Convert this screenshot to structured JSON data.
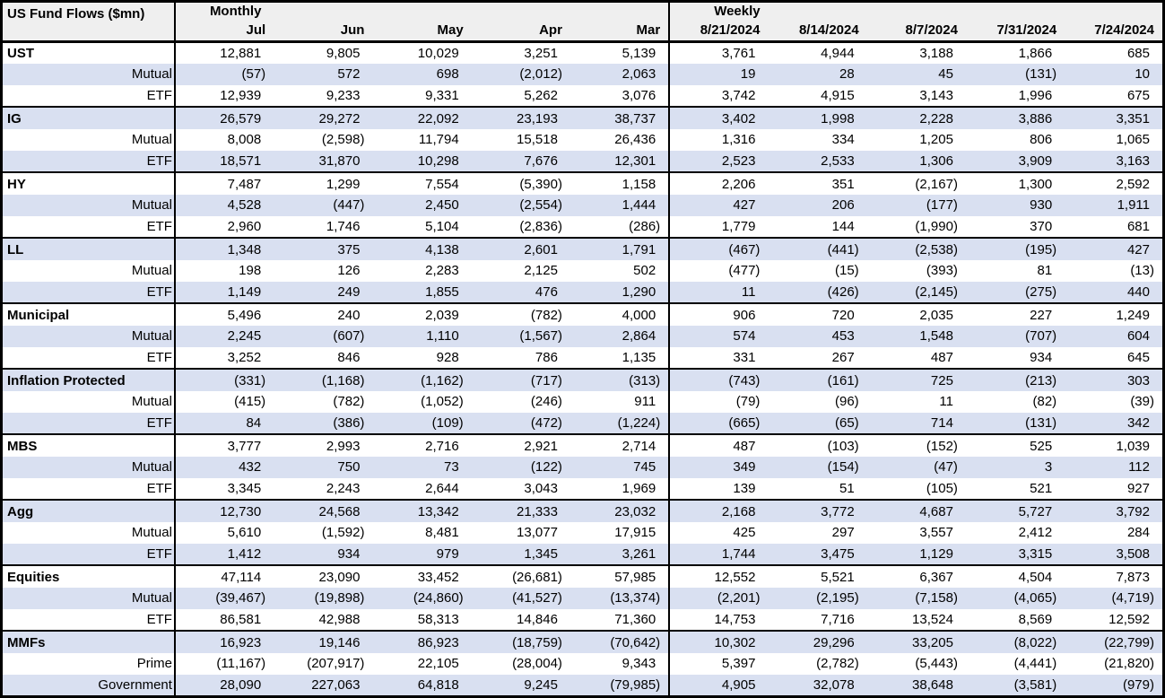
{
  "table": {
    "title": "US Fund Flows ($mn)",
    "sections": [
      {
        "label": "Monthly",
        "columns": [
          "Jul",
          "Jun",
          "May",
          "Apr",
          "Mar"
        ]
      },
      {
        "label": "Weekly",
        "columns": [
          "8/21/2024",
          "8/14/2024",
          "8/7/2024",
          "7/31/2024",
          "7/24/2024"
        ]
      }
    ],
    "groups": [
      {
        "name": "UST",
        "rows": [
          {
            "label": "UST",
            "values": [
              "12,881",
              "9,805",
              "10,029",
              "3,251",
              "5,139",
              "3,761",
              "4,944",
              "3,188",
              "1,866",
              "685"
            ]
          },
          {
            "label": "Mutual",
            "values": [
              "(57)",
              "572",
              "698",
              "(2,012)",
              "2,063",
              "19",
              "28",
              "45",
              "(131)",
              "10"
            ]
          },
          {
            "label": "ETF",
            "values": [
              "12,939",
              "9,233",
              "9,331",
              "5,262",
              "3,076",
              "3,742",
              "4,915",
              "3,143",
              "1,996",
              "675"
            ]
          }
        ]
      },
      {
        "name": "IG",
        "rows": [
          {
            "label": "IG",
            "values": [
              "26,579",
              "29,272",
              "22,092",
              "23,193",
              "38,737",
              "3,402",
              "1,998",
              "2,228",
              "3,886",
              "3,351"
            ]
          },
          {
            "label": "Mutual",
            "values": [
              "8,008",
              "(2,598)",
              "11,794",
              "15,518",
              "26,436",
              "1,316",
              "334",
              "1,205",
              "806",
              "1,065"
            ]
          },
          {
            "label": "ETF",
            "values": [
              "18,571",
              "31,870",
              "10,298",
              "7,676",
              "12,301",
              "2,523",
              "2,533",
              "1,306",
              "3,909",
              "3,163"
            ]
          }
        ]
      },
      {
        "name": "HY",
        "rows": [
          {
            "label": "HY",
            "values": [
              "7,487",
              "1,299",
              "7,554",
              "(5,390)",
              "1,158",
              "2,206",
              "351",
              "(2,167)",
              "1,300",
              "2,592"
            ]
          },
          {
            "label": "Mutual",
            "values": [
              "4,528",
              "(447)",
              "2,450",
              "(2,554)",
              "1,444",
              "427",
              "206",
              "(177)",
              "930",
              "1,911"
            ]
          },
          {
            "label": "ETF",
            "values": [
              "2,960",
              "1,746",
              "5,104",
              "(2,836)",
              "(286)",
              "1,779",
              "144",
              "(1,990)",
              "370",
              "681"
            ]
          }
        ]
      },
      {
        "name": "LL",
        "rows": [
          {
            "label": "LL",
            "values": [
              "1,348",
              "375",
              "4,138",
              "2,601",
              "1,791",
              "(467)",
              "(441)",
              "(2,538)",
              "(195)",
              "427"
            ]
          },
          {
            "label": "Mutual",
            "values": [
              "198",
              "126",
              "2,283",
              "2,125",
              "502",
              "(477)",
              "(15)",
              "(393)",
              "81",
              "(13)"
            ]
          },
          {
            "label": "ETF",
            "values": [
              "1,149",
              "249",
              "1,855",
              "476",
              "1,290",
              "11",
              "(426)",
              "(2,145)",
              "(275)",
              "440"
            ]
          }
        ]
      },
      {
        "name": "Municipal",
        "rows": [
          {
            "label": "Municipal",
            "values": [
              "5,496",
              "240",
              "2,039",
              "(782)",
              "4,000",
              "906",
              "720",
              "2,035",
              "227",
              "1,249"
            ]
          },
          {
            "label": "Mutual",
            "values": [
              "2,245",
              "(607)",
              "1,110",
              "(1,567)",
              "2,864",
              "574",
              "453",
              "1,548",
              "(707)",
              "604"
            ]
          },
          {
            "label": "ETF",
            "values": [
              "3,252",
              "846",
              "928",
              "786",
              "1,135",
              "331",
              "267",
              "487",
              "934",
              "645"
            ]
          }
        ]
      },
      {
        "name": "Inflation Protected",
        "rows": [
          {
            "label": "Inflation Protected",
            "values": [
              "(331)",
              "(1,168)",
              "(1,162)",
              "(717)",
              "(313)",
              "(743)",
              "(161)",
              "725",
              "(213)",
              "303"
            ]
          },
          {
            "label": "Mutual",
            "values": [
              "(415)",
              "(782)",
              "(1,052)",
              "(246)",
              "911",
              "(79)",
              "(96)",
              "11",
              "(82)",
              "(39)"
            ]
          },
          {
            "label": "ETF",
            "values": [
              "84",
              "(386)",
              "(109)",
              "(472)",
              "(1,224)",
              "(665)",
              "(65)",
              "714",
              "(131)",
              "342"
            ]
          }
        ]
      },
      {
        "name": "MBS",
        "rows": [
          {
            "label": "MBS",
            "values": [
              "3,777",
              "2,993",
              "2,716",
              "2,921",
              "2,714",
              "487",
              "(103)",
              "(152)",
              "525",
              "1,039"
            ]
          },
          {
            "label": "Mutual",
            "values": [
              "432",
              "750",
              "73",
              "(122)",
              "745",
              "349",
              "(154)",
              "(47)",
              "3",
              "112"
            ]
          },
          {
            "label": "ETF",
            "values": [
              "3,345",
              "2,243",
              "2,644",
              "3,043",
              "1,969",
              "139",
              "51",
              "(105)",
              "521",
              "927"
            ]
          }
        ]
      },
      {
        "name": "Agg",
        "rows": [
          {
            "label": "Agg",
            "values": [
              "12,730",
              "24,568",
              "13,342",
              "21,333",
              "23,032",
              "2,168",
              "3,772",
              "4,687",
              "5,727",
              "3,792"
            ]
          },
          {
            "label": "Mutual",
            "values": [
              "5,610",
              "(1,592)",
              "8,481",
              "13,077",
              "17,915",
              "425",
              "297",
              "3,557",
              "2,412",
              "284"
            ]
          },
          {
            "label": "ETF",
            "values": [
              "1,412",
              "934",
              "979",
              "1,345",
              "3,261",
              "1,744",
              "3,475",
              "1,129",
              "3,315",
              "3,508"
            ]
          }
        ]
      },
      {
        "name": "Equities",
        "rows": [
          {
            "label": "Equities",
            "values": [
              "47,114",
              "23,090",
              "33,452",
              "(26,681)",
              "57,985",
              "12,552",
              "5,521",
              "6,367",
              "4,504",
              "7,873"
            ]
          },
          {
            "label": "Mutual",
            "values": [
              "(39,467)",
              "(19,898)",
              "(24,860)",
              "(41,527)",
              "(13,374)",
              "(2,201)",
              "(2,195)",
              "(7,158)",
              "(4,065)",
              "(4,719)"
            ]
          },
          {
            "label": "ETF",
            "values": [
              "86,581",
              "42,988",
              "58,313",
              "14,846",
              "71,360",
              "14,753",
              "7,716",
              "13,524",
              "8,569",
              "12,592"
            ]
          }
        ]
      },
      {
        "name": "MMFs",
        "rows": [
          {
            "label": "MMFs",
            "values": [
              "16,923",
              "19,146",
              "86,923",
              "(18,759)",
              "(70,642)",
              "10,302",
              "29,296",
              "33,205",
              "(8,022)",
              "(22,799)"
            ]
          },
          {
            "label": "Prime",
            "values": [
              "(11,167)",
              "(207,917)",
              "22,105",
              "(28,004)",
              "9,343",
              "5,397",
              "(2,782)",
              "(5,443)",
              "(4,441)",
              "(21,820)"
            ]
          },
          {
            "label": "Government",
            "values": [
              "28,090",
              "227,063",
              "64,818",
              "9,245",
              "(79,985)",
              "4,905",
              "32,078",
              "38,648",
              "(3,581)",
              "(979)"
            ]
          }
        ]
      }
    ]
  },
  "colors": {
    "stripe": "#d9e0f1",
    "header_bg": "#efefef",
    "border": "#000000",
    "text": "#000000",
    "row_bg": "#ffffff"
  },
  "chart_data": {
    "type": "table",
    "title": "US Fund Flows ($mn)",
    "column_groups": [
      {
        "label": "Monthly",
        "columns": [
          "Jul",
          "Jun",
          "May",
          "Apr",
          "Mar"
        ]
      },
      {
        "label": "Weekly",
        "columns": [
          "8/21/2024",
          "8/14/2024",
          "8/7/2024",
          "7/31/2024",
          "7/24/2024"
        ]
      }
    ],
    "rows": [
      {
        "label": "UST",
        "values": [
          12881,
          9805,
          10029,
          3251,
          5139,
          3761,
          4944,
          3188,
          1866,
          685
        ],
        "children": [
          {
            "label": "Mutual",
            "values": [
              -57,
              572,
              698,
              -2012,
              2063,
              19,
              28,
              45,
              -131,
              10
            ]
          },
          {
            "label": "ETF",
            "values": [
              12939,
              9233,
              9331,
              5262,
              3076,
              3742,
              4915,
              3143,
              1996,
              675
            ]
          }
        ]
      },
      {
        "label": "IG",
        "values": [
          26579,
          29272,
          22092,
          23193,
          38737,
          3402,
          1998,
          2228,
          3886,
          3351
        ],
        "children": [
          {
            "label": "Mutual",
            "values": [
              8008,
              -2598,
              11794,
              15518,
              26436,
              1316,
              334,
              1205,
              806,
              1065
            ]
          },
          {
            "label": "ETF",
            "values": [
              18571,
              31870,
              10298,
              7676,
              12301,
              2523,
              2533,
              1306,
              3909,
              3163
            ]
          }
        ]
      },
      {
        "label": "HY",
        "values": [
          7487,
          1299,
          7554,
          -5390,
          1158,
          2206,
          351,
          -2167,
          1300,
          2592
        ],
        "children": [
          {
            "label": "Mutual",
            "values": [
              4528,
              -447,
              2450,
              -2554,
              1444,
              427,
              206,
              -177,
              930,
              1911
            ]
          },
          {
            "label": "ETF",
            "values": [
              2960,
              1746,
              5104,
              -2836,
              -286,
              1779,
              144,
              -1990,
              370,
              681
            ]
          }
        ]
      },
      {
        "label": "LL",
        "values": [
          1348,
          375,
          4138,
          2601,
          1791,
          -467,
          -441,
          -2538,
          -195,
          427
        ],
        "children": [
          {
            "label": "Mutual",
            "values": [
              198,
              126,
              2283,
              2125,
              502,
              -477,
              -15,
              -393,
              81,
              -13
            ]
          },
          {
            "label": "ETF",
            "values": [
              1149,
              249,
              1855,
              476,
              1290,
              11,
              -426,
              -2145,
              -275,
              440
            ]
          }
        ]
      },
      {
        "label": "Municipal",
        "values": [
          5496,
          240,
          2039,
          -782,
          4000,
          906,
          720,
          2035,
          227,
          1249
        ],
        "children": [
          {
            "label": "Mutual",
            "values": [
              2245,
              -607,
              1110,
              -1567,
              2864,
              574,
              453,
              1548,
              -707,
              604
            ]
          },
          {
            "label": "ETF",
            "values": [
              3252,
              846,
              928,
              786,
              1135,
              331,
              267,
              487,
              934,
              645
            ]
          }
        ]
      },
      {
        "label": "Inflation Protected",
        "values": [
          -331,
          -1168,
          -1162,
          -717,
          -313,
          -743,
          -161,
          725,
          -213,
          303
        ],
        "children": [
          {
            "label": "Mutual",
            "values": [
              -415,
              -782,
              -1052,
              -246,
              911,
              -79,
              -96,
              11,
              -82,
              -39
            ]
          },
          {
            "label": "ETF",
            "values": [
              84,
              -386,
              -109,
              -472,
              -1224,
              -665,
              -65,
              714,
              -131,
              342
            ]
          }
        ]
      },
      {
        "label": "MBS",
        "values": [
          3777,
          2993,
          2716,
          2921,
          2714,
          487,
          -103,
          -152,
          525,
          1039
        ],
        "children": [
          {
            "label": "Mutual",
            "values": [
              432,
              750,
              73,
              -122,
              745,
              349,
              -154,
              -47,
              3,
              112
            ]
          },
          {
            "label": "ETF",
            "values": [
              3345,
              2243,
              2644,
              3043,
              1969,
              139,
              51,
              -105,
              521,
              927
            ]
          }
        ]
      },
      {
        "label": "Agg",
        "values": [
          12730,
          24568,
          13342,
          21333,
          23032,
          2168,
          3772,
          4687,
          5727,
          3792
        ],
        "children": [
          {
            "label": "Mutual",
            "values": [
              5610,
              -1592,
              8481,
              13077,
              17915,
              425,
              297,
              3557,
              2412,
              284
            ]
          },
          {
            "label": "ETF",
            "values": [
              1412,
              934,
              979,
              1345,
              3261,
              1744,
              3475,
              1129,
              3315,
              3508
            ]
          }
        ]
      },
      {
        "label": "Equities",
        "values": [
          47114,
          23090,
          33452,
          -26681,
          57985,
          12552,
          5521,
          6367,
          4504,
          7873
        ],
        "children": [
          {
            "label": "Mutual",
            "values": [
              -39467,
              -19898,
              -24860,
              -41527,
              -13374,
              -2201,
              -2195,
              -7158,
              -4065,
              -4719
            ]
          },
          {
            "label": "ETF",
            "values": [
              86581,
              42988,
              58313,
              14846,
              71360,
              14753,
              7716,
              13524,
              8569,
              12592
            ]
          }
        ]
      },
      {
        "label": "MMFs",
        "values": [
          16923,
          19146,
          86923,
          -18759,
          -70642,
          10302,
          29296,
          33205,
          -8022,
          -22799
        ],
        "children": [
          {
            "label": "Prime",
            "values": [
              -11167,
              -207917,
              22105,
              -28004,
              9343,
              5397,
              -2782,
              -5443,
              -4441,
              -21820
            ]
          },
          {
            "label": "Government",
            "values": [
              28090,
              227063,
              64818,
              9245,
              -79985,
              4905,
              32078,
              38648,
              -3581,
              -979
            ]
          }
        ]
      }
    ]
  }
}
